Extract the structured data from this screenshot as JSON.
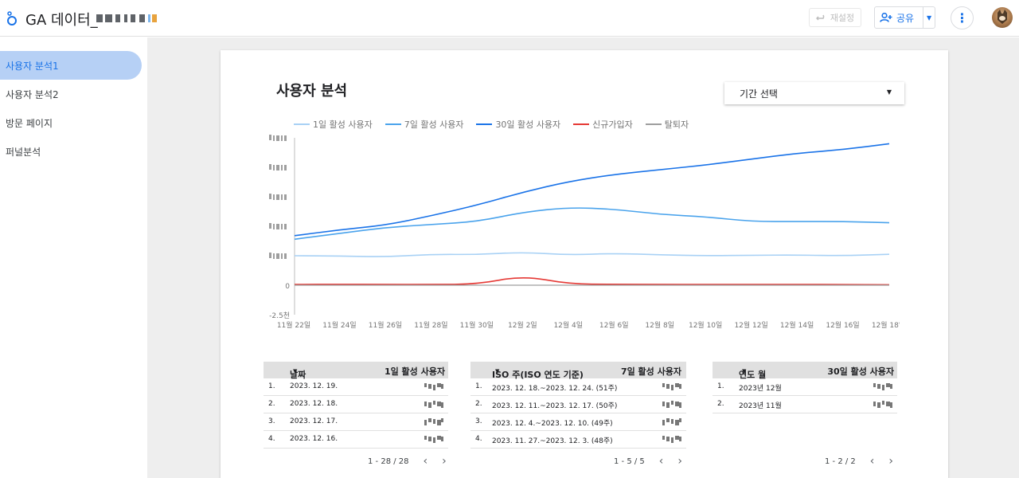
{
  "header": {
    "title": "GA 데이터_",
    "reset_label": "재설정",
    "share_label": "공유",
    "more_icon": "more-vert-icon",
    "colors": {
      "accent": "#1a73e8",
      "disabled": "#bdbdbd"
    }
  },
  "sidebar": {
    "items": [
      {
        "label": "사용자 분석1",
        "active": true
      },
      {
        "label": "사용자 분석2",
        "active": false
      },
      {
        "label": "방문 페이지",
        "active": false
      },
      {
        "label": "퍼널분석",
        "active": false
      }
    ]
  },
  "report": {
    "title": "사용자 분석",
    "date_picker_label": "기간 선택"
  },
  "chart_data": {
    "type": "line",
    "x": [
      "11월 22일",
      "11월 24일",
      "11월 26일",
      "11월 28일",
      "11월 30일",
      "12월 2일",
      "12월 4일",
      "12월 6일",
      "12월 8일",
      "12월 10일",
      "12월 12일",
      "12월 14일",
      "12월 16일",
      "12월 18일"
    ],
    "x_ticks": [
      "11월 22일",
      "11월 24일",
      "11월 26일",
      "11월 28일",
      "11월 30일",
      "12월 2일",
      "12월 4일",
      "12월 6일",
      "12월 8일",
      "12월 10일",
      "12월 12일",
      "12월 14일",
      "12월 16일",
      "12월 18일"
    ],
    "y_ticks": [
      "0",
      "-2.5천"
    ],
    "ylim": [
      -2500,
      12500
    ],
    "legend_position": "top",
    "grid": false,
    "series": [
      {
        "name": "1일 활성 사용자",
        "color": "#a8d1f5",
        "values": [
          2500,
          2480,
          2400,
          2620,
          2600,
          2800,
          2560,
          2700,
          2580,
          2500,
          2540,
          2560,
          2500,
          2620
        ]
      },
      {
        "name": "7일 활성 사용자",
        "color": "#4aa3ec",
        "values": [
          3900,
          4400,
          4900,
          5150,
          5400,
          6200,
          6600,
          6450,
          6000,
          5800,
          5400,
          5400,
          5400,
          5300
        ]
      },
      {
        "name": "30일 활성 사용자",
        "color": "#1a73e8",
        "values": [
          4200,
          4700,
          5100,
          5900,
          6800,
          7900,
          8800,
          9400,
          9800,
          10200,
          10700,
          11200,
          11500,
          12000
        ]
      },
      {
        "name": "신규가입자",
        "color": "#e53935",
        "values": [
          60,
          80,
          60,
          60,
          90,
          800,
          100,
          80,
          60,
          60,
          70,
          60,
          60,
          40
        ]
      },
      {
        "name": "탈퇴자",
        "color": "#9e9e9e",
        "values": [
          0,
          0,
          0,
          0,
          0,
          0,
          0,
          0,
          0,
          0,
          0,
          0,
          0,
          0
        ]
      }
    ]
  },
  "table1": {
    "headers": [
      "날짜",
      "1일 활성 사용자"
    ],
    "rows": [
      {
        "idx": "1.",
        "key": "2023. 12. 19."
      },
      {
        "idx": "2.",
        "key": "2023. 12. 18."
      },
      {
        "idx": "3.",
        "key": "2023. 12. 17."
      },
      {
        "idx": "4.",
        "key": "2023. 12. 16."
      }
    ],
    "pager": "1 - 28 / 28"
  },
  "table2": {
    "headers": [
      "ISO 주(ISO 연도 기준)",
      "7일 활성 사용자"
    ],
    "rows": [
      {
        "idx": "1.",
        "key": "2023. 12. 18.~2023. 12. 24. (51주)"
      },
      {
        "idx": "2.",
        "key": "2023. 12. 11.~2023. 12. 17. (50주)"
      },
      {
        "idx": "3.",
        "key": "2023. 12. 4.~2023. 12. 10. (49주)"
      },
      {
        "idx": "4.",
        "key": "2023. 11. 27.~2023. 12. 3. (48주)"
      }
    ],
    "pager": "1 - 5 / 5"
  },
  "table3": {
    "headers": [
      "연도 월",
      "30일 활성 사용자"
    ],
    "rows": [
      {
        "idx": "1.",
        "key": "2023년 12월"
      },
      {
        "idx": "2.",
        "key": "2023년 11월"
      }
    ],
    "pager": "1 - 2 / 2"
  }
}
